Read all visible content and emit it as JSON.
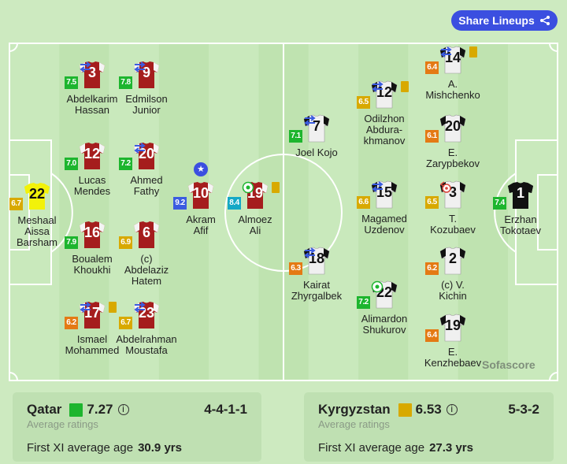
{
  "share_button": {
    "label": "Share Lineups",
    "icon": "share-icon"
  },
  "rating_colors": {
    "blue": "#3b5ce0",
    "teal": "#14a8c6",
    "green": "#1db52e",
    "yellow": "#d8a900",
    "orange": "#e47a14"
  },
  "watermark": "Sofascore",
  "home": {
    "team": "Qatar",
    "avg_rating": "7.27",
    "rating_color": "#1db52e",
    "formation": "4-4-1-1",
    "avg_label": "Average ratings",
    "age_label": "First XI average age",
    "age": "30.9 yrs",
    "kit": "#a51d1d",
    "gk_kit": "#f2f20a",
    "players": [
      {
        "name": "Meshaal\nAissa\nBarsham",
        "number": "22",
        "rating": "6.7",
        "color": "#d8a900",
        "gk": true
      },
      {
        "name": "Abdelkarim\nHassan",
        "number": "3",
        "rating": "7.5",
        "color": "#1db52e",
        "sub": true
      },
      {
        "name": "Edmilson\nJunior",
        "number": "9",
        "rating": "7.8",
        "color": "#1db52e",
        "sub": true
      },
      {
        "name": "Lucas\nMendes",
        "number": "12",
        "rating": "7.0",
        "color": "#1db52e"
      },
      {
        "name": "Ahmed\nFathy",
        "number": "20",
        "rating": "7.2",
        "color": "#1db52e",
        "sub": true
      },
      {
        "name": "Boualem\nKhoukhi",
        "number": "16",
        "rating": "7.9",
        "color": "#1db52e"
      },
      {
        "name": "(c)\nAbdelaziz\nHatem",
        "number": "6",
        "rating": "6.9",
        "color": "#d8a900"
      },
      {
        "name": "Ismael\nMohammed",
        "number": "17",
        "rating": "6.2",
        "color": "#e47a14",
        "sub": true,
        "yellow": true
      },
      {
        "name": "Abdelrahman\nMoustafa",
        "number": "23",
        "rating": "6.7",
        "color": "#d8a900",
        "sub": true
      },
      {
        "name": "Akram\nAfif",
        "number": "10",
        "rating": "9.2",
        "color": "#3b5ce0",
        "star": true
      },
      {
        "name": "Almoez\nAli",
        "number": "19",
        "rating": "8.4",
        "color": "#14a8c6",
        "yellow": true,
        "goal": true
      }
    ]
  },
  "away": {
    "team": "Kyrgyzstan",
    "avg_rating": "6.53",
    "rating_color": "#d8a900",
    "formation": "5-3-2",
    "avg_label": "Average ratings",
    "age_label": "First XI average age",
    "age": "27.3 yrs",
    "kit": "#f0f0f0",
    "gk_kit": "#111111",
    "players": [
      {
        "name": "Erzhan\nTokotaev",
        "number": "1",
        "rating": "7.4",
        "color": "#1db52e",
        "gk": true
      },
      {
        "name": "A.\nMishchenko",
        "number": "14",
        "rating": "6.4",
        "color": "#e47a14",
        "sub": true,
        "yellow": true
      },
      {
        "name": "E.\nZarypbekov",
        "number": "20",
        "rating": "6.1",
        "color": "#e47a14"
      },
      {
        "name": "T.\nKozubaev",
        "number": "3",
        "rating": "6.5",
        "color": "#d8a900",
        "own_goal": true
      },
      {
        "name": "(c) V.\nKichin",
        "number": "2",
        "rating": "6.2",
        "color": "#e47a14"
      },
      {
        "name": "E.\nKenzhebaev",
        "number": "19",
        "rating": "6.4",
        "color": "#e47a14"
      },
      {
        "name": "Odilzhon\nAbdura-\nkhmanov",
        "number": "12",
        "rating": "6.5",
        "color": "#d8a900",
        "sub": true,
        "yellow": true
      },
      {
        "name": "Magamed\nUzdenov",
        "number": "15",
        "rating": "6.6",
        "color": "#d8a900",
        "sub": true
      },
      {
        "name": "Alimardon\nShukurov",
        "number": "22",
        "rating": "7.2",
        "color": "#1db52e",
        "goal": true
      },
      {
        "name": "Joel Kojo",
        "number": "7",
        "rating": "7.1",
        "color": "#1db52e",
        "sub": true
      },
      {
        "name": "Kairat\nZhyrgalbek",
        "number": "18",
        "rating": "6.3",
        "color": "#e47a14",
        "sub": true
      }
    ]
  }
}
